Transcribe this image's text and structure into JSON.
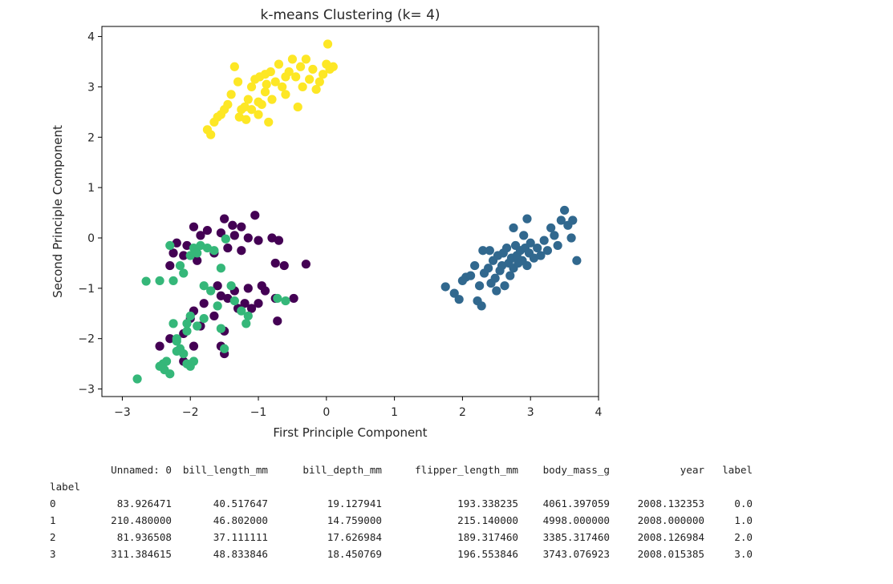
{
  "chart_data": {
    "type": "scatter",
    "title": "k-means Clustering (k= 4)",
    "xlabel": "First Principle Component",
    "ylabel": "Second Principle Component",
    "xlim": [
      -3.3,
      4.0
    ],
    "ylim": [
      -3.15,
      4.2
    ],
    "xticks": [
      -3,
      -2,
      -1,
      0,
      1,
      2,
      3,
      4
    ],
    "yticks": [
      -3,
      -2,
      -1,
      0,
      1,
      2,
      3,
      4
    ],
    "grid": false,
    "colors": [
      "#440154",
      "#31688e",
      "#35b779",
      "#fde725"
    ],
    "series": [
      {
        "cluster": 0,
        "color": "#440154",
        "points": [
          [
            -1.5,
            0.38
          ],
          [
            -1.38,
            0.25
          ],
          [
            -1.25,
            0.22
          ],
          [
            -1.05,
            0.45
          ],
          [
            -1.95,
            0.22
          ],
          [
            -1.75,
            0.15
          ],
          [
            -1.55,
            0.1
          ],
          [
            -1.35,
            0.05
          ],
          [
            -1.15,
            0.0
          ],
          [
            -0.8,
            0.0
          ],
          [
            -0.7,
            -0.05
          ],
          [
            -1.0,
            -0.05
          ],
          [
            -2.2,
            -0.1
          ],
          [
            -2.05,
            -0.15
          ],
          [
            -1.85,
            0.05
          ],
          [
            -1.65,
            -0.3
          ],
          [
            -1.45,
            -0.2
          ],
          [
            -1.25,
            -0.25
          ],
          [
            -0.75,
            -0.5
          ],
          [
            -0.62,
            -0.55
          ],
          [
            -0.3,
            -0.52
          ],
          [
            -1.9,
            -0.45
          ],
          [
            -2.1,
            -0.35
          ],
          [
            -2.25,
            -0.3
          ],
          [
            -1.6,
            -0.95
          ],
          [
            -1.35,
            -1.05
          ],
          [
            -1.15,
            -1.0
          ],
          [
            -0.95,
            -0.95
          ],
          [
            -0.9,
            -1.05
          ],
          [
            -1.55,
            -1.15
          ],
          [
            -1.45,
            -1.2
          ],
          [
            -1.2,
            -1.3
          ],
          [
            -1.8,
            -1.3
          ],
          [
            -1.95,
            -1.45
          ],
          [
            -2.0,
            -1.6
          ],
          [
            -1.65,
            -1.55
          ],
          [
            -1.3,
            -1.4
          ],
          [
            -1.1,
            -1.4
          ],
          [
            -1.5,
            -1.85
          ],
          [
            -1.85,
            -1.75
          ],
          [
            -2.1,
            -1.9
          ],
          [
            -2.3,
            -2.0
          ],
          [
            -2.45,
            -2.15
          ],
          [
            -1.95,
            -2.15
          ],
          [
            -1.55,
            -2.15
          ],
          [
            -1.5,
            -2.3
          ],
          [
            -2.1,
            -2.45
          ],
          [
            -0.72,
            -1.65
          ],
          [
            -0.48,
            -1.2
          ],
          [
            -1.0,
            -1.3
          ],
          [
            -0.75,
            -1.2
          ],
          [
            -2.3,
            -0.55
          ]
        ]
      },
      {
        "cluster": 1,
        "color": "#31688e",
        "points": [
          [
            1.75,
            -0.97
          ],
          [
            1.88,
            -1.1
          ],
          [
            1.95,
            -1.22
          ],
          [
            2.0,
            -0.85
          ],
          [
            2.05,
            -0.78
          ],
          [
            2.12,
            -0.75
          ],
          [
            2.18,
            -0.55
          ],
          [
            2.22,
            -1.25
          ],
          [
            2.25,
            -0.95
          ],
          [
            2.28,
            -1.35
          ],
          [
            2.3,
            -0.25
          ],
          [
            2.32,
            -0.7
          ],
          [
            2.38,
            -0.6
          ],
          [
            2.42,
            -0.9
          ],
          [
            2.45,
            -0.45
          ],
          [
            2.48,
            -0.8
          ],
          [
            2.52,
            -0.35
          ],
          [
            2.55,
            -0.65
          ],
          [
            2.58,
            -0.55
          ],
          [
            2.6,
            -0.3
          ],
          [
            2.62,
            -0.95
          ],
          [
            2.65,
            -0.2
          ],
          [
            2.68,
            -0.5
          ],
          [
            2.7,
            -0.75
          ],
          [
            2.72,
            -0.4
          ],
          [
            2.75,
            -0.6
          ],
          [
            2.78,
            -0.15
          ],
          [
            2.8,
            -0.35
          ],
          [
            2.82,
            -0.5
          ],
          [
            2.85,
            -0.25
          ],
          [
            2.88,
            -0.45
          ],
          [
            2.9,
            0.05
          ],
          [
            2.92,
            -0.2
          ],
          [
            2.95,
            -0.55
          ],
          [
            2.98,
            -0.3
          ],
          [
            3.0,
            -0.1
          ],
          [
            3.05,
            -0.4
          ],
          [
            3.1,
            -0.2
          ],
          [
            3.15,
            -0.35
          ],
          [
            3.2,
            -0.05
          ],
          [
            3.25,
            -0.25
          ],
          [
            3.3,
            0.2
          ],
          [
            3.35,
            0.05
          ],
          [
            3.4,
            -0.15
          ],
          [
            3.45,
            0.35
          ],
          [
            3.5,
            0.55
          ],
          [
            3.55,
            0.25
          ],
          [
            3.6,
            0.0
          ],
          [
            3.62,
            0.35
          ],
          [
            3.68,
            -0.45
          ],
          [
            2.75,
            0.2
          ],
          [
            2.95,
            0.38
          ],
          [
            2.4,
            -0.25
          ],
          [
            2.5,
            -1.05
          ]
        ]
      },
      {
        "cluster": 2,
        "color": "#35b779",
        "points": [
          [
            -2.78,
            -2.8
          ],
          [
            -2.65,
            -0.86
          ],
          [
            -2.45,
            -0.85
          ],
          [
            -2.4,
            -2.5
          ],
          [
            -2.38,
            -2.62
          ],
          [
            -2.3,
            -2.7
          ],
          [
            -2.25,
            -1.7
          ],
          [
            -2.2,
            -2.05
          ],
          [
            -2.15,
            -2.2
          ],
          [
            -2.1,
            -2.3
          ],
          [
            -2.05,
            -2.5
          ],
          [
            -2.0,
            -2.55
          ],
          [
            -1.95,
            -2.45
          ],
          [
            -2.3,
            -0.15
          ],
          [
            -2.15,
            -0.55
          ],
          [
            -2.1,
            -0.7
          ],
          [
            -2.0,
            -0.35
          ],
          [
            -1.95,
            -0.2
          ],
          [
            -1.9,
            -0.3
          ],
          [
            -1.85,
            -0.15
          ],
          [
            -1.75,
            -0.2
          ],
          [
            -1.65,
            -0.25
          ],
          [
            -1.55,
            -0.6
          ],
          [
            -1.48,
            -0.02
          ],
          [
            -1.4,
            -0.95
          ],
          [
            -1.35,
            -1.25
          ],
          [
            -1.25,
            -1.45
          ],
          [
            -1.15,
            -1.55
          ],
          [
            -1.5,
            -2.2
          ],
          [
            -1.6,
            -1.35
          ],
          [
            -1.7,
            -1.05
          ],
          [
            -1.8,
            -0.95
          ],
          [
            -1.9,
            -1.75
          ],
          [
            -2.05,
            -1.85
          ],
          [
            -2.2,
            -2.0
          ],
          [
            -2.2,
            -2.25
          ],
          [
            -2.35,
            -2.45
          ],
          [
            -2.45,
            -2.55
          ],
          [
            -1.18,
            -1.7
          ],
          [
            -0.72,
            -1.2
          ],
          [
            -0.6,
            -1.25
          ],
          [
            -2.25,
            -0.85
          ],
          [
            -1.55,
            -1.8
          ],
          [
            -2.0,
            -1.55
          ],
          [
            -1.8,
            -1.6
          ],
          [
            -2.05,
            -1.7
          ]
        ]
      },
      {
        "cluster": 3,
        "color": "#fde725",
        "points": [
          [
            -1.75,
            2.15
          ],
          [
            -1.7,
            2.05
          ],
          [
            -1.65,
            2.3
          ],
          [
            -1.6,
            2.4
          ],
          [
            -1.55,
            2.45
          ],
          [
            -1.5,
            2.55
          ],
          [
            -1.45,
            2.65
          ],
          [
            -1.4,
            2.85
          ],
          [
            -1.35,
            3.4
          ],
          [
            -1.3,
            3.1
          ],
          [
            -1.28,
            2.4
          ],
          [
            -1.25,
            2.55
          ],
          [
            -1.2,
            2.6
          ],
          [
            -1.18,
            2.35
          ],
          [
            -1.15,
            2.75
          ],
          [
            -1.1,
            3.0
          ],
          [
            -1.05,
            3.15
          ],
          [
            -1.0,
            2.45
          ],
          [
            -0.98,
            3.2
          ],
          [
            -0.95,
            2.65
          ],
          [
            -0.9,
            2.9
          ],
          [
            -0.88,
            3.05
          ],
          [
            -0.85,
            2.3
          ],
          [
            -0.82,
            3.3
          ],
          [
            -0.8,
            2.75
          ],
          [
            -0.75,
            3.1
          ],
          [
            -0.7,
            3.45
          ],
          [
            -0.65,
            3.0
          ],
          [
            -0.6,
            2.85
          ],
          [
            -0.55,
            3.3
          ],
          [
            -0.5,
            3.55
          ],
          [
            -0.45,
            3.2
          ],
          [
            -0.42,
            2.6
          ],
          [
            -0.38,
            3.4
          ],
          [
            -0.35,
            3.0
          ],
          [
            -0.3,
            3.55
          ],
          [
            -0.25,
            3.15
          ],
          [
            -0.2,
            3.35
          ],
          [
            -0.15,
            2.95
          ],
          [
            -0.1,
            3.1
          ],
          [
            -0.05,
            3.25
          ],
          [
            0.0,
            3.45
          ],
          [
            0.02,
            3.85
          ],
          [
            0.05,
            3.35
          ],
          [
            0.1,
            3.4
          ],
          [
            -1.2,
            2.6
          ],
          [
            -1.0,
            2.7
          ],
          [
            -0.9,
            3.25
          ],
          [
            -1.1,
            2.55
          ],
          [
            -0.6,
            3.2
          ]
        ]
      }
    ]
  },
  "table": {
    "headers": [
      "",
      "Unnamed: 0",
      "bill_length_mm",
      "bill_depth_mm",
      "flipper_length_mm",
      "body_mass_g",
      "year",
      "label"
    ],
    "index_name": "label",
    "rows": [
      [
        "0",
        "83.926471",
        "40.517647",
        "19.127941",
        "193.338235",
        "4061.397059",
        "2008.132353",
        "0.0"
      ],
      [
        "1",
        "210.480000",
        "46.802000",
        "14.759000",
        "215.140000",
        "4998.000000",
        "2008.000000",
        "1.0"
      ],
      [
        "2",
        "81.936508",
        "37.111111",
        "17.626984",
        "189.317460",
        "3385.317460",
        "2008.126984",
        "2.0"
      ],
      [
        "3",
        "311.384615",
        "48.833846",
        "18.450769",
        "196.553846",
        "3743.076923",
        "2008.015385",
        "3.0"
      ]
    ]
  }
}
